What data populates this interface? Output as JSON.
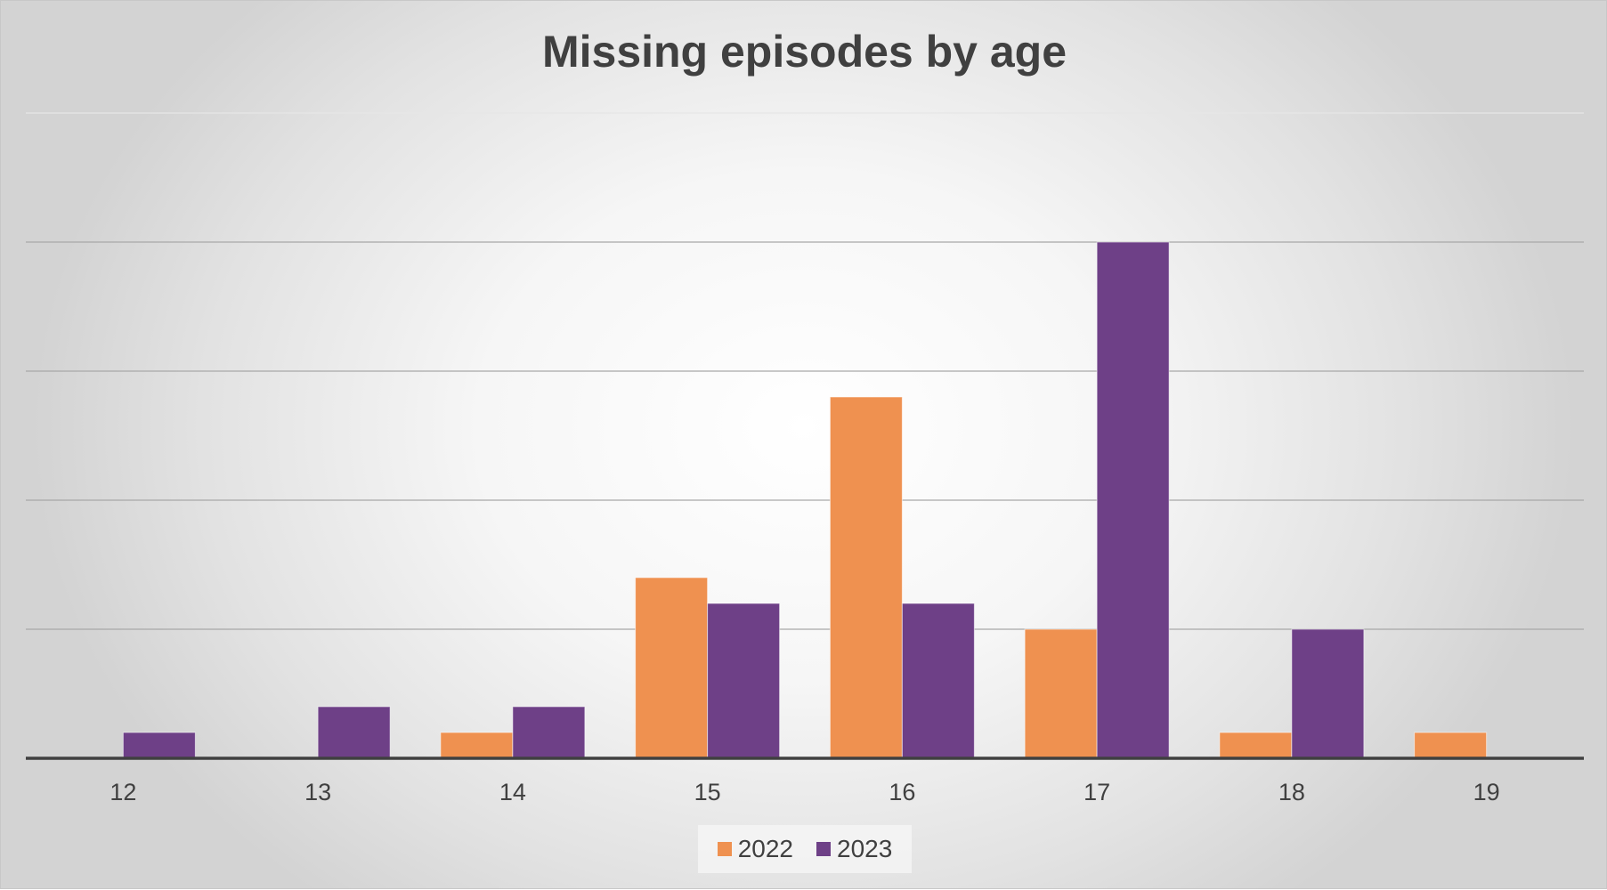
{
  "chart_data": {
    "type": "bar",
    "title": "Missing episodes by age",
    "xlabel": "",
    "ylabel": "",
    "categories": [
      "12",
      "13",
      "14",
      "15",
      "16",
      "17",
      "18",
      "19"
    ],
    "series": [
      {
        "name": "2022",
        "color": "#ef9150",
        "values": [
          0,
          0,
          1,
          7,
          14,
          5,
          1,
          1
        ]
      },
      {
        "name": "2023",
        "color": "#6e4087",
        "values": [
          1,
          2,
          2,
          6,
          6,
          20,
          5,
          0
        ]
      }
    ],
    "ylim": [
      0,
      25
    ],
    "y_gridlines": [
      5,
      10,
      15,
      20,
      25
    ],
    "y_tick_labels_shown": false,
    "grid": true,
    "legend_position": "bottom"
  }
}
